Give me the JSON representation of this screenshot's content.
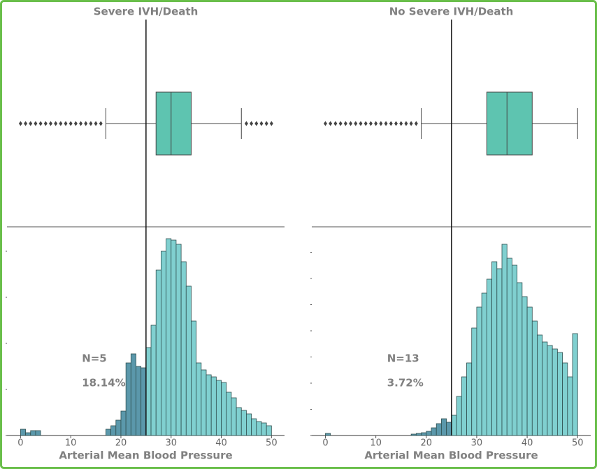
{
  "chart_data": [
    {
      "type": "histogram",
      "title": "Severe IVH/Death",
      "xlabel": "Arterial Mean Blood Pressure",
      "xlim": [
        -2.7,
        52.6
      ],
      "xticks": [
        0,
        10,
        20,
        30,
        40,
        50
      ],
      "ylim": [
        0,
        290
      ],
      "yticks": [
        0,
        66,
        132,
        198,
        264
      ],
      "threshold": 25,
      "color": "#80d0d0",
      "below_color": "#5b98ab",
      "edge_color": "#2f4f4f",
      "bins": [
        0,
        1,
        2,
        3,
        4,
        5,
        6,
        7,
        8,
        9,
        10,
        11,
        12,
        13,
        14,
        15,
        16,
        17,
        18,
        19,
        20,
        21,
        22,
        23,
        24,
        25,
        26,
        27,
        28,
        29,
        30,
        31,
        32,
        33,
        34,
        35,
        36,
        37,
        38,
        39,
        40,
        41,
        42,
        43,
        44,
        45,
        46,
        47,
        48,
        49,
        50
      ],
      "values": [
        9,
        4,
        7,
        7,
        0,
        0,
        0,
        0,
        0,
        0,
        0,
        0,
        0,
        0,
        0,
        0,
        0,
        9,
        14,
        22,
        35,
        104,
        117,
        99,
        97,
        126,
        158,
        237,
        264,
        282,
        280,
        274,
        249,
        214,
        164,
        104,
        94,
        87,
        84,
        79,
        76,
        62,
        54,
        40,
        36,
        31,
        24,
        20,
        18,
        14
      ],
      "annotations": [
        "N=5",
        "18.14%"
      ],
      "box": {
        "color": "#5ec4b0",
        "whisker_low": 17,
        "q1": 27,
        "median": 30,
        "q3": 34,
        "whisker_high": 44,
        "outliers": [
          0,
          1,
          2,
          3,
          4,
          5,
          6,
          7,
          8,
          9,
          10,
          11,
          12,
          13,
          14,
          15,
          16,
          45,
          46,
          47,
          48,
          49,
          50
        ]
      }
    },
    {
      "type": "histogram",
      "title": "No Severe IVH/Death",
      "xlabel": "Arterial Mean Blood Pressure",
      "xlim": [
        -2.7,
        52.6
      ],
      "xticks": [
        0,
        10,
        20,
        30,
        40,
        50
      ],
      "ylim": [
        0,
        290
      ],
      "yticks": [
        0,
        37.5,
        75,
        112.5,
        150,
        187.5,
        225,
        262.5
      ],
      "threshold": 25,
      "color": "#80d0d0",
      "below_color": "#5b98ab",
      "edge_color": "#2f4f4f",
      "bins": [
        0,
        1,
        2,
        3,
        4,
        5,
        6,
        7,
        8,
        9,
        10,
        11,
        12,
        13,
        14,
        15,
        16,
        17,
        18,
        19,
        20,
        21,
        22,
        23,
        24,
        25,
        26,
        27,
        28,
        29,
        30,
        31,
        32,
        33,
        34,
        35,
        36,
        37,
        38,
        39,
        40,
        41,
        42,
        43,
        44,
        45,
        46,
        47,
        48,
        49,
        50
      ],
      "values": [
        3,
        0,
        0,
        0,
        0,
        0,
        0,
        0,
        0,
        0,
        0,
        0,
        0,
        0,
        0,
        0,
        0,
        2,
        3,
        4,
        6,
        11,
        17,
        24,
        19,
        29,
        56,
        84,
        104,
        154,
        184,
        204,
        224,
        249,
        239,
        274,
        254,
        244,
        219,
        199,
        184,
        164,
        144,
        134,
        129,
        124,
        119,
        104,
        84,
        146
      ],
      "annotations": [
        "N=13",
        "3.72%"
      ],
      "box": {
        "color": "#5ec4b0",
        "whisker_low": 19,
        "q1": 32,
        "median": 36,
        "q3": 41,
        "whisker_high": 50,
        "outliers": [
          0,
          1,
          2,
          3,
          4,
          5,
          6,
          7,
          8,
          9,
          10,
          11,
          12,
          13,
          14,
          15,
          16,
          17,
          18
        ]
      }
    }
  ]
}
